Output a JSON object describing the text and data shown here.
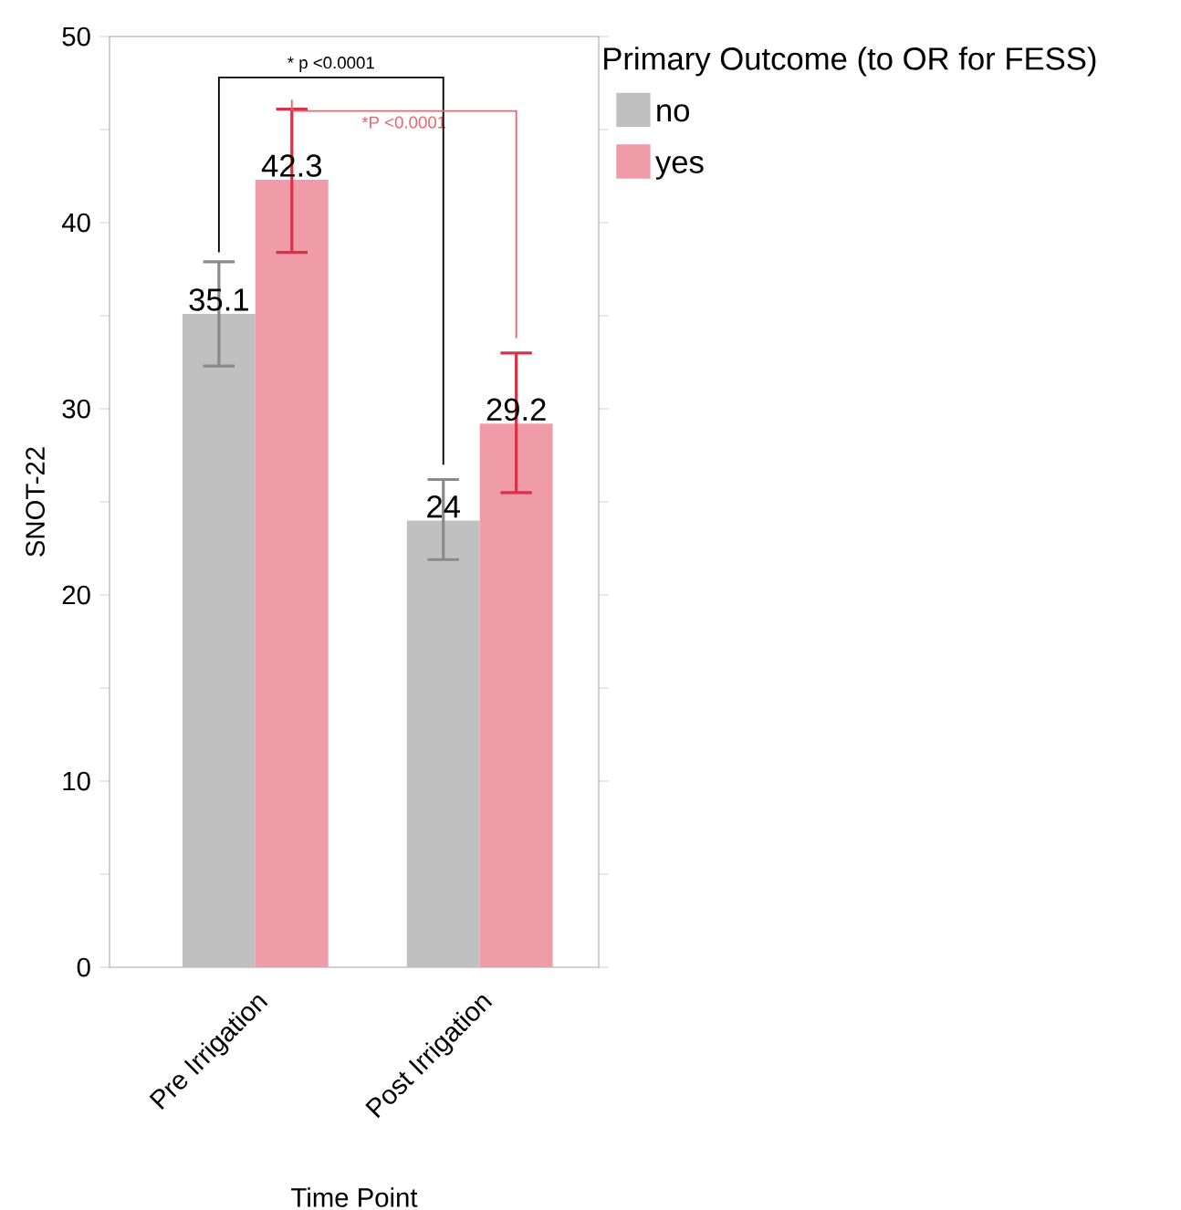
{
  "chart_data": {
    "type": "bar",
    "xlabel": "Time Point",
    "ylabel": "SNOT-22",
    "legend_title": "Primary Outcome (to OR for FESS)",
    "categories": [
      "Pre Irrigation",
      "Post Irrigation"
    ],
    "series": [
      {
        "name": "no",
        "color": "#c0c0c0",
        "values": [
          35.1,
          24
        ],
        "errors": [
          [
            32.3,
            37.9
          ],
          [
            21.9,
            26.2
          ]
        ]
      },
      {
        "name": "yes",
        "color": "#f09ca8",
        "values": [
          42.3,
          29.2
        ],
        "errors": [
          [
            38.4,
            46.1
          ],
          [
            25.5,
            33.0
          ]
        ]
      }
    ],
    "ylim": [
      0,
      50
    ],
    "yticks": [
      0,
      {
        "value": 5,
        "label": null
      },
      10,
      {
        "value": 15,
        "label": null
      },
      20,
      {
        "value": 25,
        "label": null
      },
      30,
      {
        "value": 35,
        "label": null
      },
      40,
      {
        "value": 45,
        "label": null
      },
      50
    ],
    "data_labels": true,
    "grid": false,
    "legend": "top right",
    "annotations": [
      "* p <0.0001",
      "*P <0.0001"
    ]
  }
}
